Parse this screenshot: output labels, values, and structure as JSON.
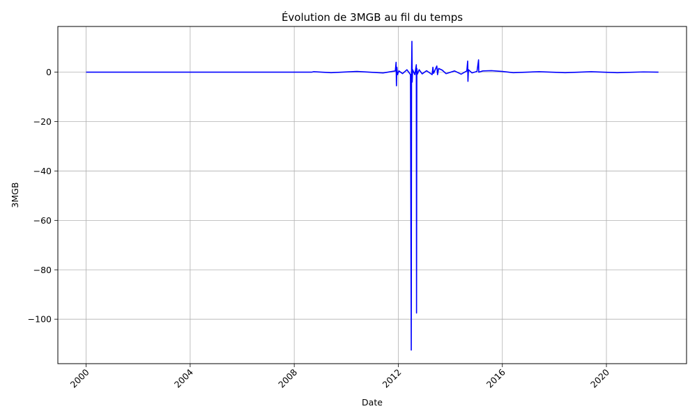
{
  "chart_data": {
    "type": "line",
    "title": "Évolution de 3MGB au fil du temps",
    "xlabel": "Date",
    "ylabel": "3MGB",
    "x_ticks": [
      "2000",
      "2004",
      "2008",
      "2012",
      "2016",
      "2020"
    ],
    "y_ticks": [
      "0",
      "−20",
      "−40",
      "−60",
      "−80",
      "−100"
    ],
    "xlim": [
      "1998-11-30",
      "2023-01-30"
    ],
    "ylim": [
      -118,
      18.5
    ],
    "grid": true,
    "line_color": "#0000ff",
    "series": [
      {
        "points": [
          [
            "2000-01-01",
            0
          ],
          [
            "2008-09-01",
            0
          ],
          [
            "2008-10-01",
            0.2
          ],
          [
            "2009-06-01",
            -0.2
          ],
          [
            "2010-06-01",
            0.3
          ],
          [
            "2011-06-01",
            -0.3
          ],
          [
            "2011-11-20",
            0.5
          ],
          [
            "2011-12-01",
            4
          ],
          [
            "2011-12-06",
            -5.5
          ],
          [
            "2011-12-12",
            2
          ],
          [
            "2011-12-20",
            -1
          ],
          [
            "2012-01-10",
            0.5
          ],
          [
            "2012-03-01",
            -0.6
          ],
          [
            "2012-05-01",
            1
          ],
          [
            "2012-06-20",
            -1
          ],
          [
            "2012-07-01",
            -112.5
          ],
          [
            "2012-07-05",
            0
          ],
          [
            "2012-07-10",
            12.5
          ],
          [
            "2012-07-14",
            -4
          ],
          [
            "2012-07-20",
            1
          ],
          [
            "2012-08-20",
            -1
          ],
          [
            "2012-09-10",
            3
          ],
          [
            "2012-09-13",
            -97.5
          ],
          [
            "2012-09-17",
            1.5
          ],
          [
            "2012-09-25",
            -0.8
          ],
          [
            "2012-10-20",
            1
          ],
          [
            "2012-12-01",
            -0.7
          ],
          [
            "2013-02-01",
            0.6
          ],
          [
            "2013-04-20",
            -1
          ],
          [
            "2013-05-01",
            2
          ],
          [
            "2013-05-10",
            -0.5
          ],
          [
            "2013-06-25",
            2.5
          ],
          [
            "2013-07-05",
            -1
          ],
          [
            "2013-07-20",
            1.5
          ],
          [
            "2013-09-10",
            0.8
          ],
          [
            "2013-11-01",
            -0.6
          ],
          [
            "2014-03-01",
            0.5
          ],
          [
            "2014-06-01",
            -0.8
          ],
          [
            "2014-08-20",
            0.5
          ],
          [
            "2014-09-01",
            4.5
          ],
          [
            "2014-09-05",
            -3.7
          ],
          [
            "2014-09-12",
            1
          ],
          [
            "2014-11-01",
            -0.3
          ],
          [
            "2015-01-10",
            0.3
          ],
          [
            "2015-02-01",
            5
          ],
          [
            "2015-02-04",
            0
          ],
          [
            "2015-04-01",
            0.5
          ],
          [
            "2015-08-01",
            0.6
          ],
          [
            "2016-01-01",
            0.3
          ],
          [
            "2016-06-01",
            -0.2
          ],
          [
            "2017-06-01",
            0.2
          ],
          [
            "2018-06-01",
            -0.2
          ],
          [
            "2019-06-01",
            0.2
          ],
          [
            "2020-06-01",
            -0.2
          ],
          [
            "2021-06-01",
            0.1
          ],
          [
            "2022-01-01",
            0
          ]
        ]
      }
    ]
  }
}
